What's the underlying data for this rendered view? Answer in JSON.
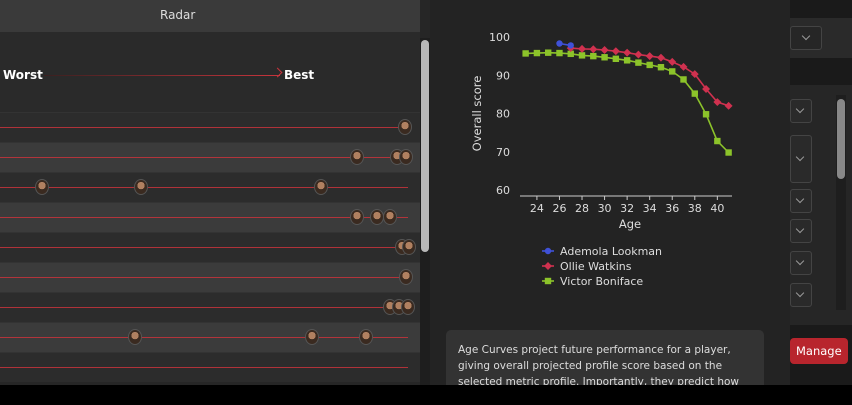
{
  "left_panel": {
    "tab_label": "Radar",
    "scale": {
      "worst": "Worst",
      "best": "Best"
    }
  },
  "age_curve_chart": {
    "ylabel": "Overall score",
    "xlabel": "Age",
    "colors": {
      "lookman": "#3f51d8",
      "watkins": "#d0314f",
      "boniface": "#8cc32a",
      "axis": "#cccccc"
    }
  },
  "chart_data": {
    "type": "line",
    "title": "",
    "xlabel": "Age",
    "ylabel": "Overall score",
    "xlim": [
      22.5,
      41.3
    ],
    "ylim": [
      60,
      100
    ],
    "xticks": [
      24,
      26,
      28,
      30,
      32,
      34,
      36,
      38,
      40
    ],
    "yticks": [
      60,
      70,
      80,
      90,
      100
    ],
    "series": [
      {
        "name": "Ademola Lookman",
        "marker": "circle",
        "color": "#3f51d8",
        "x": [
          26,
          27
        ],
        "y": [
          98.3,
          97.8
        ]
      },
      {
        "name": "Ollie Watkins",
        "marker": "diamond",
        "color": "#d0314f",
        "x": [
          27,
          28,
          29,
          30,
          31,
          32,
          33,
          34,
          35,
          36,
          37,
          38,
          39,
          40,
          41
        ],
        "y": [
          97.1,
          96.9,
          96.8,
          96.6,
          96.3,
          95.9,
          95.4,
          95.0,
          94.6,
          93.5,
          92.2,
          90.3,
          86.4,
          83.0,
          82.0
        ]
      },
      {
        "name": "Victor Boniface",
        "marker": "square",
        "color": "#8cc32a",
        "x": [
          23,
          24,
          25,
          26,
          27,
          28,
          29,
          30,
          31,
          32,
          33,
          34,
          35,
          36,
          37,
          38,
          39,
          40,
          41
        ],
        "y": [
          95.7,
          95.8,
          95.9,
          95.8,
          95.6,
          95.2,
          95.0,
          94.7,
          94.3,
          93.9,
          93.3,
          92.7,
          92.1,
          91.0,
          88.9,
          85.2,
          79.8,
          72.8,
          69.8
        ]
      }
    ],
    "legend_position": "bottom"
  },
  "info": {
    "text": "Age Curves project future performance for a player, giving overall projected profile score based on the selected metric profile. Importantly, they predict how players age per metric"
  },
  "right_panel": {
    "manage_label": "Manage"
  }
}
